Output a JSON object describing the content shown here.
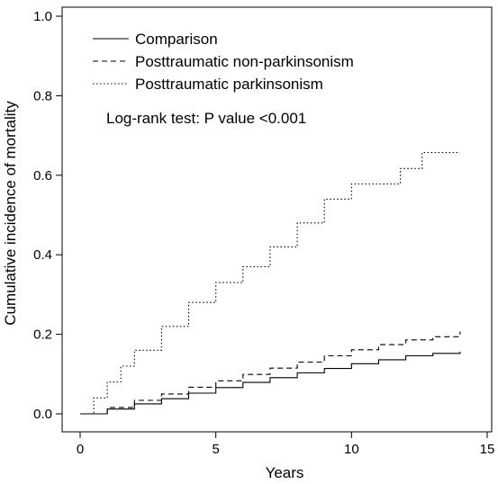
{
  "chart_data": {
    "type": "line",
    "title": "",
    "xlabel": "Years",
    "ylabel": "Cumulative incidence of mortality",
    "xlim": [
      0,
      15
    ],
    "ylim": [
      0,
      1.0
    ],
    "xticks": [
      "0",
      "5",
      "10",
      "15"
    ],
    "yticks": [
      "0.0",
      "0.2",
      "0.4",
      "0.6",
      "0.8",
      "1.0"
    ],
    "grid": false,
    "legend_position": "top-left",
    "annotation": "Log-rank test: P value <0.001",
    "series": [
      {
        "name": "Comparison",
        "style": "solid",
        "points": [
          [
            0,
            0
          ],
          [
            1,
            0.012
          ],
          [
            2,
            0.025
          ],
          [
            3,
            0.038
          ],
          [
            4,
            0.052
          ],
          [
            5,
            0.066
          ],
          [
            6,
            0.079
          ],
          [
            7,
            0.091
          ],
          [
            8,
            0.103
          ],
          [
            9,
            0.114
          ],
          [
            10,
            0.126
          ],
          [
            11,
            0.136
          ],
          [
            12,
            0.146
          ],
          [
            13,
            0.152
          ],
          [
            14,
            0.156
          ]
        ]
      },
      {
        "name": "Posttraumatic non-parkinsonism",
        "style": "dashed",
        "points": [
          [
            0,
            0
          ],
          [
            1,
            0.016
          ],
          [
            2,
            0.034
          ],
          [
            3,
            0.05
          ],
          [
            4,
            0.067
          ],
          [
            5,
            0.083
          ],
          [
            6,
            0.099
          ],
          [
            7,
            0.115
          ],
          [
            8,
            0.13
          ],
          [
            9,
            0.146
          ],
          [
            10,
            0.161
          ],
          [
            11,
            0.174
          ],
          [
            12,
            0.186
          ],
          [
            13,
            0.194
          ],
          [
            14,
            0.207
          ]
        ]
      },
      {
        "name": "Posttraumatic parkinsonism",
        "style": "dotted",
        "points": [
          [
            0,
            0
          ],
          [
            0.5,
            0.04
          ],
          [
            1,
            0.08
          ],
          [
            1.5,
            0.12
          ],
          [
            2,
            0.16
          ],
          [
            3,
            0.22
          ],
          [
            4,
            0.28
          ],
          [
            5,
            0.33
          ],
          [
            6,
            0.37
          ],
          [
            7,
            0.42
          ],
          [
            8,
            0.48
          ],
          [
            9,
            0.54
          ],
          [
            10,
            0.578
          ],
          [
            11,
            0.578
          ],
          [
            11.7,
            0.578
          ],
          [
            11.8,
            0.617
          ],
          [
            12.5,
            0.617
          ],
          [
            12.6,
            0.657
          ],
          [
            14,
            0.657
          ]
        ]
      }
    ]
  }
}
